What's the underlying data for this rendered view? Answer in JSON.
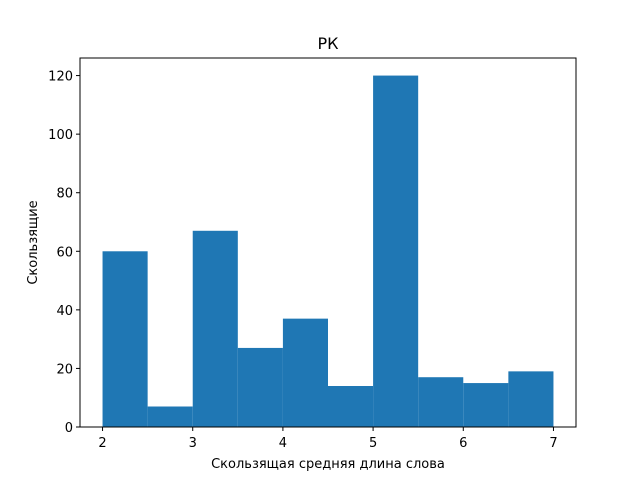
{
  "chart_data": {
    "type": "bar",
    "title": "РК",
    "xlabel": "Скользящая средняя длина слова",
    "ylabel": "Скользящие",
    "bin_edges": [
      2.0,
      2.5,
      3.0,
      3.5,
      4.0,
      4.5,
      5.0,
      5.5,
      6.0,
      6.5,
      7.0
    ],
    "values": [
      60,
      7,
      67,
      27,
      37,
      14,
      120,
      17,
      15,
      19
    ],
    "xlim": [
      1.75,
      7.25
    ],
    "ylim": [
      0,
      126
    ],
    "xticks": [
      2,
      3,
      4,
      5,
      6,
      7
    ],
    "yticks": [
      0,
      20,
      40,
      60,
      80,
      100,
      120
    ],
    "bar_color": "#1f77b4",
    "grid": false,
    "legend": "none"
  }
}
